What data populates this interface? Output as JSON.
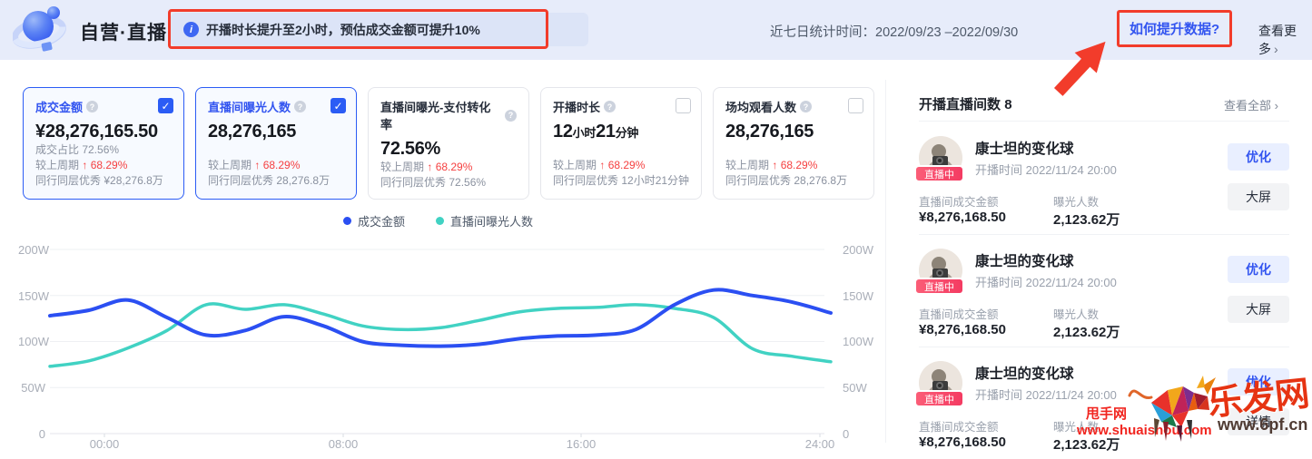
{
  "header": {
    "title": "自营·直播",
    "banner_text": "开播时长提升至2小时，预估成交金额可提升10%",
    "period_label": "近七日统计时间：",
    "period_value": "2022/09/23 –2022/09/30",
    "improve_link": "如何提升数据?",
    "view_more": "查看更多",
    "chevron": "›"
  },
  "metrics": {
    "cards": [
      {
        "title": "成交金额",
        "value": "¥28,276,165.50",
        "share_text": "成交占比 72.56%",
        "wow_label": "较上周期",
        "wow_value": "↑ 68.29%",
        "peer_label": "同行同层优秀",
        "peer_value": "¥28,276.8万"
      },
      {
        "title": "直播间曝光人数",
        "value": "28,276,165",
        "wow_label": "较上周期",
        "wow_value": "↑ 68.29%",
        "peer_label": "同行同层优秀",
        "peer_value": "28,276.8万"
      },
      {
        "title": "直播间曝光-支付转化率",
        "value": "72.56%",
        "wow_label": "较上周期",
        "wow_value": "↑ 68.29%",
        "peer_label": "同行同层优秀",
        "peer_value": "72.56%"
      },
      {
        "title": "开播时长",
        "v1": "12",
        "u1": "小时",
        "v2": "21",
        "u2": "分钟",
        "wow_label": "较上周期",
        "wow_value": "↑ 68.29%",
        "peer_label": "同行同层优秀",
        "peer_value": "12小时21分钟"
      },
      {
        "title": "场均观看人数",
        "value": "28,276,165",
        "wow_label": "较上周期",
        "wow_value": "↑ 68.29%",
        "peer_label": "同行同层优秀",
        "peer_value": "28,276.8万"
      }
    ]
  },
  "chart_data": {
    "type": "line",
    "title": "",
    "xticks": [
      "00:00",
      "08:00",
      "16:00",
      "24:00"
    ],
    "yticks": [
      "200W",
      "150W",
      "100W",
      "50W",
      "0"
    ],
    "ytick_values": [
      200,
      150,
      100,
      50,
      0
    ],
    "ylim": [
      0,
      200
    ],
    "unit": "W(万)",
    "grid": true,
    "smooth": true,
    "dual_y_axis": true,
    "legend_position": "top-center",
    "series": [
      {
        "name": "成交金额",
        "color": "#2b4ff2",
        "values": [
          128,
          134,
          145,
          126,
          107,
          112,
          127,
          117,
          100,
          96,
          95,
          97,
          103,
          106,
          107,
          113,
          140,
          156,
          150,
          143,
          131
        ]
      },
      {
        "name": "直播间曝光人数",
        "color": "#41d2c3",
        "values": [
          73,
          79,
          93,
          112,
          140,
          135,
          140,
          130,
          117,
          113,
          115,
          123,
          132,
          136,
          137,
          140,
          136,
          126,
          92,
          84,
          78
        ]
      }
    ]
  },
  "live_rooms": {
    "title_label": "开播直播间数",
    "count": "8",
    "view_all": "查看全部 ›",
    "items": [
      {
        "name": "康士坦的变化球",
        "status": "直播中",
        "time_label": "开播时间 2022/11/24 20:00",
        "gmv_label": "直播间成交金额",
        "gmv": "¥8,276,168.50",
        "exposure_label": "曝光人数",
        "exposure": "2,123.62万",
        "action1": "优化",
        "action2": "大屏"
      },
      {
        "name": "康士坦的变化球",
        "status": "直播中",
        "time_label": "开播时间 2022/11/24 20:00",
        "gmv_label": "直播间成交金额",
        "gmv": "¥8,276,168.50",
        "exposure_label": "曝光人数",
        "exposure": "2,123.62万",
        "action1": "优化",
        "action2": "大屏"
      },
      {
        "name": "康士坦的变化球",
        "status": "直播中",
        "time_label": "开播时间 2022/11/24 20:00",
        "gmv_label": "直播间成交金额",
        "gmv": "¥8,276,168.50",
        "exposure_label": "曝光人数",
        "exposure": "2,123.62万",
        "action1": "优化",
        "action2": "详情"
      }
    ]
  },
  "watermarks": {
    "shuaishou_name": "甩手网",
    "shuaishou_url": "www.shuaishou.com",
    "lefa_name": "乐发网",
    "lefa_url": "www.6pf.cn"
  },
  "colors": {
    "accent_blue": "#3355f0",
    "line_blue": "#2b4ff2",
    "line_teal": "#41d2c3",
    "alert_red": "#f23c2b",
    "up_red": "#f53f3f",
    "live_badge": "#f43b62"
  }
}
